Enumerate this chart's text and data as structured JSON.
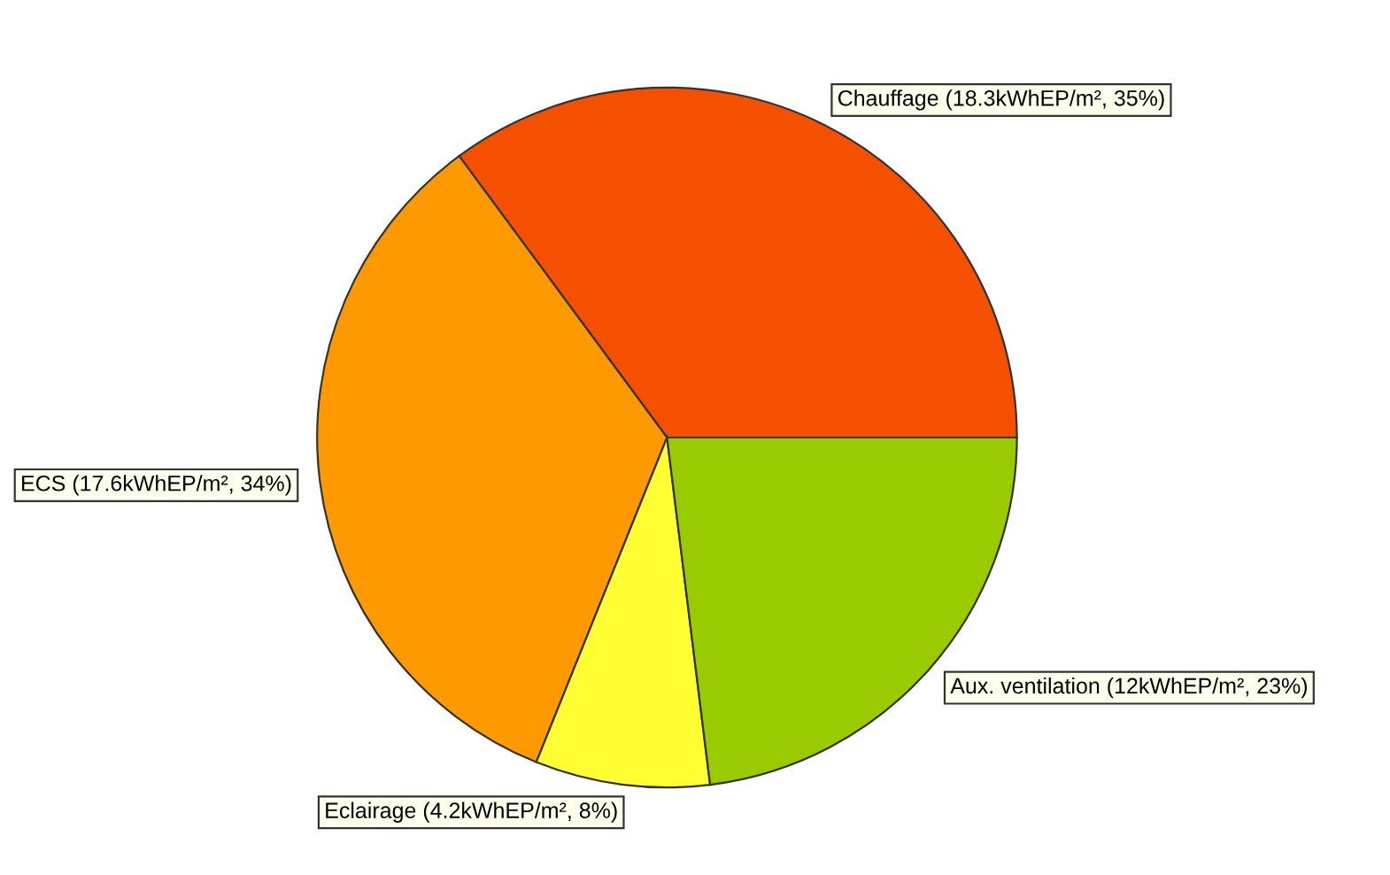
{
  "chart_data": {
    "type": "pie",
    "categories": [
      "Chauffage",
      "ECS",
      "Eclairage",
      "Aux. ventilation"
    ],
    "values": [
      18.3,
      17.6,
      4.2,
      12
    ],
    "value_labels": [
      "(18.3kWhEP/m², 35%)",
      "(17.6kWhEP/m², 34%)",
      "(4.2kWhEP/m², 8%)",
      "(12kWhEP/m², 23%)"
    ],
    "colors": [
      "#f55000",
      "#ff9900",
      "#ffff33",
      "#99cc00"
    ],
    "legend": false
  }
}
